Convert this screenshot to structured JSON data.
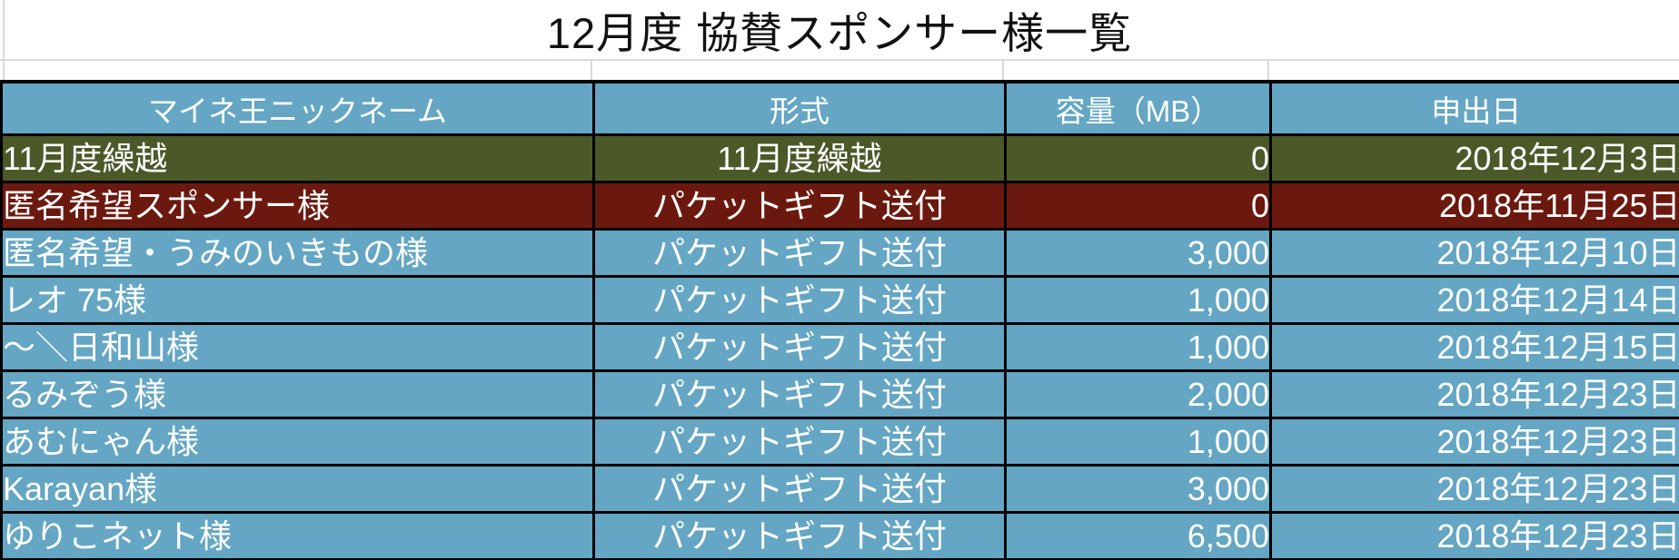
{
  "title": "12月度 協賛スポンサー様一覧",
  "table": {
    "headers": [
      "マイネ王ニックネーム",
      "形式",
      "容量（MB）",
      "申出日"
    ],
    "rows": [
      {
        "nickname": "11月度繰越",
        "format": "11月度繰越",
        "capacity_mb": "0",
        "date": "2018年12月3日",
        "theme": "olive"
      },
      {
        "nickname": "匿名希望スポンサー様",
        "format": "パケットギフト送付",
        "capacity_mb": "0",
        "date": "2018年11月25日",
        "theme": "darkred"
      },
      {
        "nickname": "匿名希望・うみのいきもの様",
        "format": "パケットギフト送付",
        "capacity_mb": "3,000",
        "date": "2018年12月10日",
        "theme": "teal"
      },
      {
        "nickname": "レオ 75様",
        "format": "パケットギフト送付",
        "capacity_mb": "1,000",
        "date": "2018年12月14日",
        "theme": "teal"
      },
      {
        "nickname": "〜＼日和山様",
        "format": "パケットギフト送付",
        "capacity_mb": "1,000",
        "date": "2018年12月15日",
        "theme": "teal"
      },
      {
        "nickname": "るみぞう様",
        "format": "パケットギフト送付",
        "capacity_mb": "2,000",
        "date": "2018年12月23日",
        "theme": "teal"
      },
      {
        "nickname": "あむにゃん様",
        "format": "パケットギフト送付",
        "capacity_mb": "1,000",
        "date": "2018年12月23日",
        "theme": "teal"
      },
      {
        "nickname": "Karayan様",
        "format": "パケットギフト送付",
        "capacity_mb": "3,000",
        "date": "2018年12月23日",
        "theme": "teal"
      },
      {
        "nickname": "ゆりこネット様",
        "format": "パケットギフト送付",
        "capacity_mb": "6,500",
        "date": "2018年12月23日",
        "theme": "teal"
      }
    ]
  },
  "colors": {
    "teal": "#64A6C3",
    "olive": "#4B5929",
    "darkred": "#6B190F",
    "grid_black": "#000000",
    "grid_light": "#D9D9D9",
    "text_white": "#FFFFFF",
    "title_text": "#111111"
  }
}
